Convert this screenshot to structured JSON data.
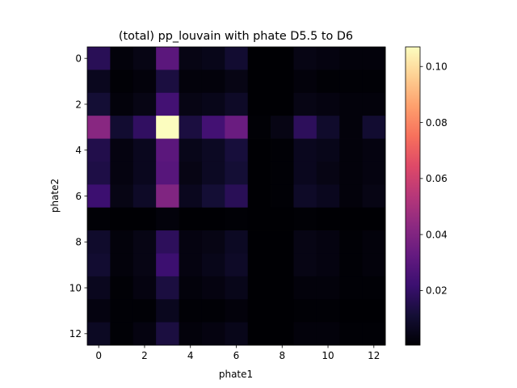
{
  "chart_data": {
    "type": "heatmap",
    "title": "(total) pp_louvain with phate D5.5 to D6",
    "xlabel": "phate1",
    "ylabel": "phate2",
    "x_ticks": [
      0,
      2,
      4,
      6,
      8,
      10,
      12
    ],
    "y_ticks": [
      0,
      2,
      4,
      6,
      8,
      10,
      12
    ],
    "x_range": [
      -0.5,
      12.5
    ],
    "y_range": [
      12.5,
      -0.5
    ],
    "colormap": "magma",
    "color_range": [
      0.0005,
      0.107
    ],
    "colorbar_ticks": [
      "0.02",
      "0.04",
      "0.06",
      "0.08",
      "0.10"
    ],
    "colorbar_tick_values": [
      0.02,
      0.04,
      0.06,
      0.08,
      0.1
    ],
    "values": [
      [
        0.017,
        0.002,
        0.004,
        0.03,
        0.004,
        0.005,
        0.01,
        0.0005,
        0.0005,
        0.004,
        0.003,
        0.002,
        0.002
      ],
      [
        0.006,
        0.001,
        0.002,
        0.013,
        0.002,
        0.002,
        0.004,
        0.0005,
        0.0005,
        0.002,
        0.001,
        0.001,
        0.001
      ],
      [
        0.011,
        0.002,
        0.004,
        0.024,
        0.004,
        0.005,
        0.008,
        0.0005,
        0.0005,
        0.004,
        0.003,
        0.002,
        0.002
      ],
      [
        0.042,
        0.01,
        0.019,
        0.107,
        0.013,
        0.024,
        0.034,
        0.001,
        0.004,
        0.018,
        0.009,
        0.002,
        0.01
      ],
      [
        0.015,
        0.003,
        0.006,
        0.03,
        0.005,
        0.007,
        0.012,
        0.0005,
        0.001,
        0.006,
        0.005,
        0.002,
        0.003
      ],
      [
        0.014,
        0.003,
        0.006,
        0.029,
        0.004,
        0.007,
        0.011,
        0.0005,
        0.001,
        0.006,
        0.004,
        0.002,
        0.003
      ],
      [
        0.022,
        0.004,
        0.008,
        0.04,
        0.006,
        0.011,
        0.017,
        0.0005,
        0.001,
        0.008,
        0.006,
        0.002,
        0.004
      ],
      [
        0.001,
        0.0005,
        0.0005,
        0.002,
        0.0005,
        0.0005,
        0.001,
        0.0005,
        0.0005,
        0.001,
        0.0005,
        0.0005,
        0.0005
      ],
      [
        0.009,
        0.002,
        0.004,
        0.018,
        0.003,
        0.004,
        0.007,
        0.0005,
        0.0005,
        0.004,
        0.003,
        0.001,
        0.002
      ],
      [
        0.01,
        0.002,
        0.004,
        0.022,
        0.003,
        0.005,
        0.008,
        0.0005,
        0.0005,
        0.004,
        0.003,
        0.001,
        0.002
      ],
      [
        0.006,
        0.001,
        0.003,
        0.013,
        0.002,
        0.003,
        0.005,
        0.0005,
        0.0005,
        0.002,
        0.002,
        0.001,
        0.001
      ],
      [
        0.003,
        0.001,
        0.001,
        0.006,
        0.001,
        0.001,
        0.002,
        0.0005,
        0.0005,
        0.001,
        0.001,
        0.0005,
        0.0005
      ],
      [
        0.007,
        0.001,
        0.003,
        0.013,
        0.002,
        0.003,
        0.005,
        0.0005,
        0.0005,
        0.002,
        0.002,
        0.001,
        0.001
      ]
    ]
  }
}
